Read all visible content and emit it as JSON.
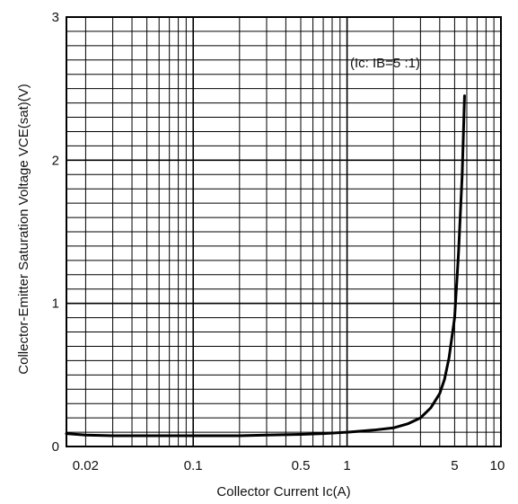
{
  "chart_data": {
    "type": "line",
    "xscale": "log",
    "xlim": [
      0.015,
      10
    ],
    "ylim": [
      0,
      3
    ],
    "grid": true,
    "xlabel": "Collector Current Ic(A)",
    "ylabel": "Collector-Emitter Saturation Voltage VCE(sat)(V)",
    "annotation": "(Ic: IB=5 :1)",
    "x_tick_labels": [
      {
        "value": 0.02,
        "label": "0.02"
      },
      {
        "value": 0.1,
        "label": "0.1"
      },
      {
        "value": 0.5,
        "label": "0.5"
      },
      {
        "value": 1,
        "label": "1"
      },
      {
        "value": 5,
        "label": "5"
      },
      {
        "value": 10,
        "label": "10"
      }
    ],
    "y_tick_labels": [
      {
        "value": 0,
        "label": "0"
      },
      {
        "value": 1,
        "label": "1"
      },
      {
        "value": 2,
        "label": "2"
      },
      {
        "value": 3,
        "label": "3"
      }
    ],
    "series": [
      {
        "x": [
          0.015,
          0.02,
          0.03,
          0.05,
          0.1,
          0.2,
          0.3,
          0.5,
          0.7,
          1,
          1.5,
          2,
          2.5,
          3,
          3.5,
          4,
          4.3,
          4.6,
          5,
          5.3,
          5.6,
          5.8
        ],
        "y": [
          0.09,
          0.08,
          0.075,
          0.075,
          0.075,
          0.075,
          0.08,
          0.085,
          0.09,
          0.1,
          0.115,
          0.13,
          0.16,
          0.2,
          0.27,
          0.37,
          0.47,
          0.62,
          0.9,
          1.35,
          1.9,
          2.45
        ]
      }
    ]
  }
}
